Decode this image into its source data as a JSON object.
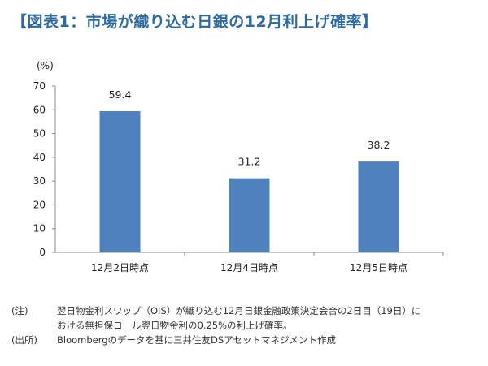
{
  "title": "【図表1：市場が織り込む日銀の12月利上げ確率】",
  "chart_data": {
    "type": "bar",
    "unit_label": "(%)",
    "categories": [
      "12月2日時点",
      "12月4日時点",
      "12月5日時点"
    ],
    "values": [
      59.4,
      31.2,
      38.2
    ],
    "value_labels": [
      "59.4",
      "31.2",
      "38.2"
    ],
    "ylim": [
      0,
      70
    ],
    "yticks": [
      0,
      10,
      20,
      30,
      40,
      50,
      60,
      70
    ],
    "bar_color": "#4f81bd",
    "grid": false
  },
  "notes": {
    "note_key": "(注)",
    "note_line1": "翌日物金利スワップ（OIS）が織り込む12月日銀金融政策決定会合の2日目（19日）に",
    "note_line2": "おける無担保コール翌日物金利の0.25%の利上げ確率。",
    "source_key": "(出所)",
    "source_text": "Bloombergのデータを基に三井住友DSアセットマネジメント作成"
  }
}
